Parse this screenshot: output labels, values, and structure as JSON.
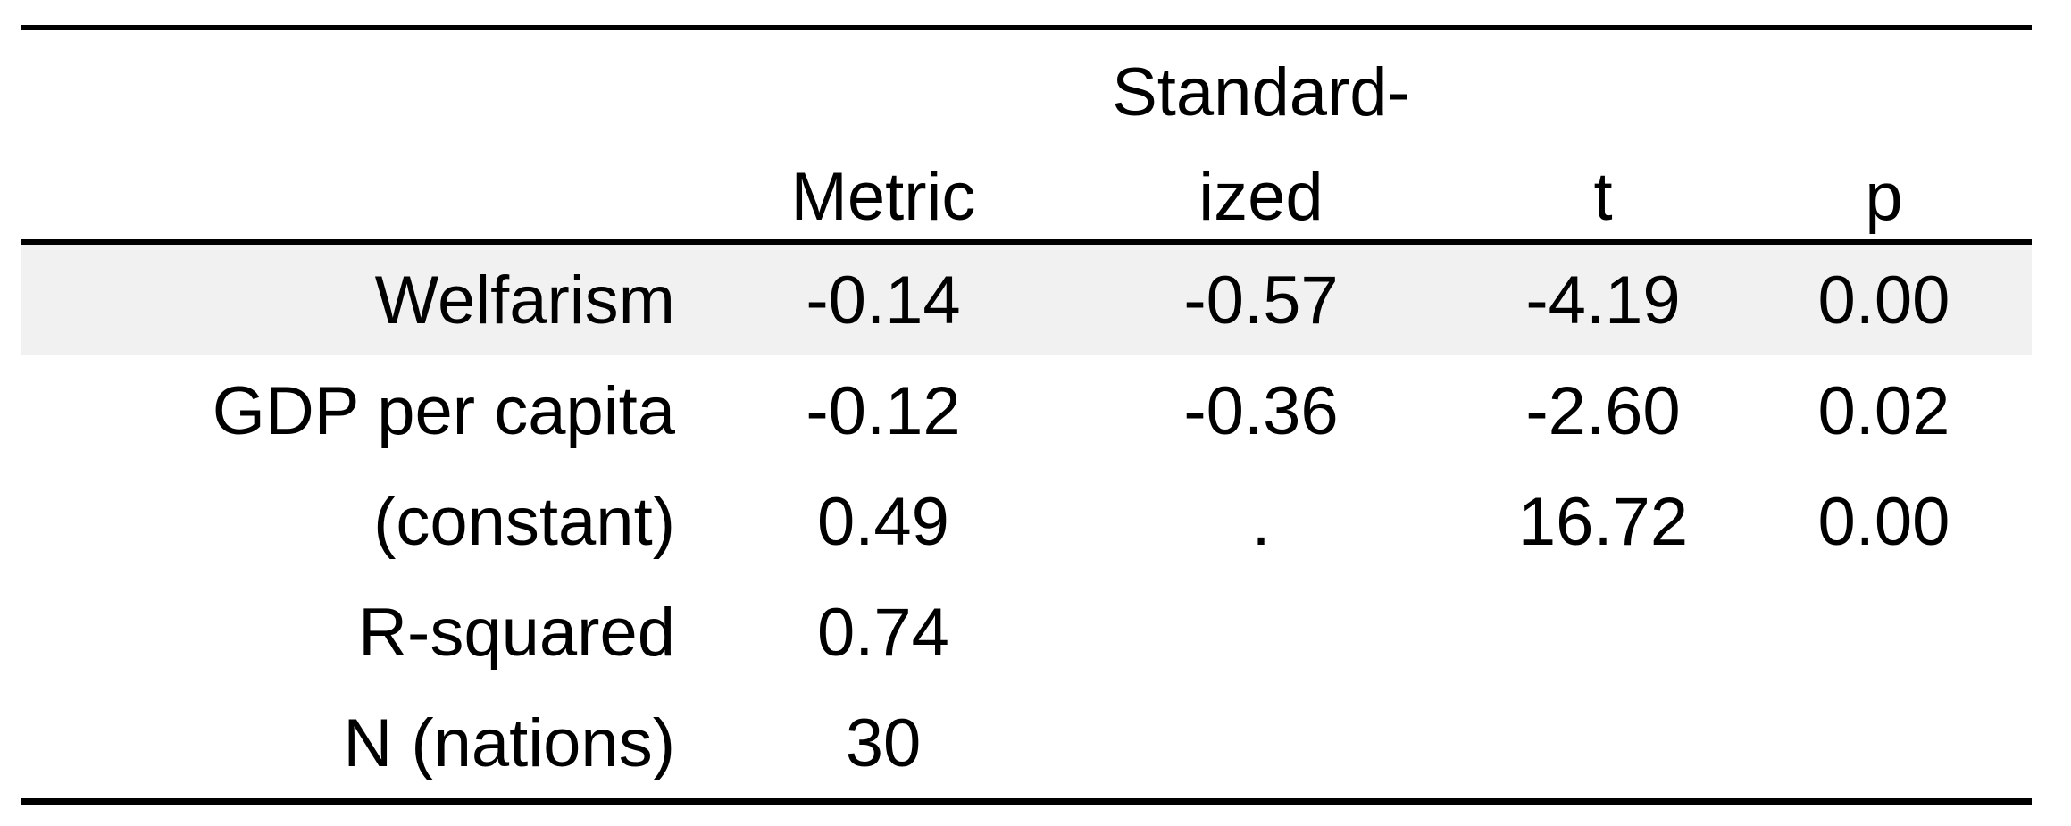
{
  "table": {
    "header": {
      "label_col": "",
      "metric": "Metric",
      "standardized_line1": "Standard-",
      "standardized_line2": "ized",
      "t": "t",
      "p": "p"
    },
    "rows": [
      {
        "label": "Welfarism",
        "metric": "-0.14",
        "standardized": "-0.57",
        "t": "-4.19",
        "p": "0.00"
      },
      {
        "label": "GDP per capita",
        "metric": "-0.12",
        "standardized": "-0.36",
        "t": "-2.60",
        "p": "0.02"
      },
      {
        "label": "(constant)",
        "metric": "0.49",
        "standardized": ".",
        "t": "16.72",
        "p": "0.00"
      },
      {
        "label": "R-squared",
        "metric": "0.74",
        "standardized": "",
        "t": "",
        "p": ""
      },
      {
        "label": "N (nations)",
        "metric": "30",
        "standardized": "",
        "t": "",
        "p": ""
      }
    ],
    "colors": {
      "shaded_row": "#f1f1f1",
      "rule": "#000000",
      "text": "#000000",
      "background": "#ffffff"
    }
  },
  "chart_data": {
    "type": "table",
    "title": "",
    "columns": [
      "",
      "Metric",
      "Standardized",
      "t",
      "p"
    ],
    "rows": [
      [
        "Welfarism",
        -0.14,
        -0.57,
        -4.19,
        0.0
      ],
      [
        "GDP per capita",
        -0.12,
        -0.36,
        -2.6,
        0.02
      ],
      [
        "(constant)",
        0.49,
        null,
        16.72,
        0.0
      ],
      [
        "R-squared",
        0.74,
        null,
        null,
        null
      ],
      [
        "N (nations)",
        30,
        null,
        null,
        null
      ]
    ],
    "notes": "Regression results table; first data row is shaded; standardized coefficient for (constant) shown as a period.",
    "layout": {
      "grid": "off",
      "rules": [
        "top",
        "below-header",
        "bottom"
      ],
      "label_column_alignment": "right",
      "value_column_alignment": "center"
    }
  }
}
